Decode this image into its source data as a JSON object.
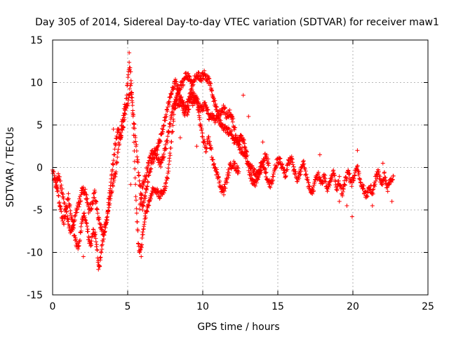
{
  "chart_data": {
    "type": "scatter",
    "title": "Day 305 of 2014, Sidereal Day-to-day VTEC variation (SDTVAR) for receiver maw1",
    "xlabel": "GPS time / hours",
    "ylabel": "SDTVAR / TECUs",
    "xlim": [
      0,
      25
    ],
    "ylim": [
      -15,
      15
    ],
    "xticks": [
      0,
      5,
      10,
      15,
      20,
      25
    ],
    "yticks": [
      -15,
      -10,
      -5,
      0,
      5,
      10,
      15
    ],
    "xtick_labels": [
      "0",
      "5",
      "10",
      "15",
      "20",
      "25"
    ],
    "ytick_labels": [
      "-15",
      "-10",
      "-5",
      "0",
      "5",
      "10",
      "15"
    ],
    "grid": true,
    "marker": "+",
    "series": [
      {
        "name": "maw1",
        "color": "#ff0000",
        "tracks": [
          [
            [
              0.0,
              -0.5
            ],
            [
              0.15,
              -1.5
            ],
            [
              0.3,
              -2.5
            ],
            [
              0.45,
              -4.0
            ],
            [
              0.6,
              -5.5
            ],
            [
              0.75,
              -6.5
            ],
            [
              0.9,
              -5.0
            ],
            [
              1.05,
              -3.5
            ],
            [
              1.2,
              -5.0
            ],
            [
              1.35,
              -7.0
            ],
            [
              1.5,
              -8.5
            ],
            [
              1.65,
              -9.5
            ],
            [
              1.8,
              -8.5
            ],
            [
              1.95,
              -6.5
            ],
            [
              2.1,
              -5.5
            ],
            [
              2.25,
              -6.5
            ],
            [
              2.4,
              -8.5
            ],
            [
              2.55,
              -9.0
            ],
            [
              2.7,
              -7.5
            ],
            [
              2.85,
              -8.0
            ],
            [
              3.0,
              -10.5
            ],
            [
              3.1,
              -12.0
            ],
            [
              3.2,
              -10.5
            ],
            [
              3.35,
              -8.5
            ],
            [
              3.5,
              -7.0
            ],
            [
              3.65,
              -5.5
            ],
            [
              3.8,
              -3.0
            ],
            [
              3.9,
              -1.0
            ],
            [
              4.0,
              0.0
            ],
            [
              4.1,
              1.5
            ],
            [
              4.2,
              3.0
            ],
            [
              4.35,
              4.5
            ],
            [
              4.5,
              3.5
            ],
            [
              4.65,
              4.5
            ],
            [
              4.8,
              6.0
            ],
            [
              4.9,
              8.0
            ],
            [
              5.0,
              10.0
            ],
            [
              5.1,
              12.0
            ],
            [
              5.2,
              11.0
            ],
            [
              5.3,
              8.0
            ],
            [
              5.4,
              4.0
            ],
            [
              5.5,
              -1.5
            ],
            [
              5.6,
              -5.5
            ],
            [
              5.7,
              -8.5
            ],
            [
              5.8,
              -10.0
            ],
            [
              5.9,
              -9.5
            ],
            [
              6.0,
              -8.0
            ],
            [
              6.1,
              -6.5
            ],
            [
              6.2,
              -5.5
            ],
            [
              6.35,
              -4.5
            ],
            [
              6.5,
              -3.5
            ],
            [
              6.7,
              -2.5
            ],
            [
              6.9,
              -2.8
            ],
            [
              7.1,
              -3.3
            ],
            [
              7.3,
              -3.0
            ],
            [
              7.5,
              -2.5
            ],
            [
              7.7,
              -0.5
            ],
            [
              7.9,
              3.0
            ],
            [
              8.1,
              6.5
            ],
            [
              8.3,
              8.5
            ],
            [
              8.5,
              9.5
            ],
            [
              8.7,
              10.0
            ],
            [
              8.9,
              11.0
            ],
            [
              9.1,
              10.5
            ],
            [
              9.3,
              9.8
            ],
            [
              9.5,
              10.5
            ],
            [
              9.7,
              10.8
            ],
            [
              9.9,
              10.5
            ],
            [
              10.1,
              11.0
            ],
            [
              10.3,
              10.5
            ],
            [
              10.5,
              10.0
            ],
            [
              10.7,
              8.0
            ],
            [
              10.9,
              7.0
            ],
            [
              11.1,
              5.5
            ],
            [
              11.3,
              5.0
            ],
            [
              11.5,
              4.5
            ],
            [
              11.7,
              4.2
            ],
            [
              11.9,
              4.0
            ],
            [
              12.1,
              3.2
            ],
            [
              12.3,
              3.0
            ],
            [
              12.5,
              3.5
            ],
            [
              12.7,
              3.0
            ],
            [
              12.9,
              2.0
            ],
            [
              13.1,
              -0.5
            ],
            [
              13.3,
              -1.5
            ],
            [
              13.5,
              -2.0
            ],
            [
              13.7,
              -1.0
            ],
            [
              13.9,
              0.5
            ],
            [
              14.1,
              0.0
            ],
            [
              14.3,
              -1.5
            ],
            [
              14.5,
              -2.0
            ],
            [
              14.7,
              -1.0
            ],
            [
              14.9,
              0.5
            ],
            [
              15.1,
              1.0
            ],
            [
              15.3,
              0.0
            ],
            [
              15.5,
              -1.0
            ],
            [
              15.7,
              0.5
            ],
            [
              15.9,
              1.0
            ],
            [
              16.1,
              -0.5
            ],
            [
              16.3,
              -1.5
            ],
            [
              16.5,
              -0.5
            ],
            [
              16.7,
              0.5
            ],
            [
              16.9,
              -1.0
            ],
            [
              17.1,
              -2.5
            ],
            [
              17.3,
              -3.0
            ],
            [
              17.5,
              -1.5
            ],
            [
              17.7,
              -1.0
            ],
            [
              17.9,
              -2.0
            ],
            [
              18.1,
              -1.0
            ],
            [
              18.3,
              -2.5
            ],
            [
              18.5,
              -1.5
            ],
            [
              18.7,
              -0.5
            ],
            [
              18.9,
              -2.5
            ],
            [
              19.1,
              -1.5
            ],
            [
              19.3,
              -3.0
            ],
            [
              19.5,
              -1.5
            ],
            [
              19.7,
              -0.5
            ],
            [
              19.9,
              -2.0
            ],
            [
              20.1,
              -1.0
            ],
            [
              20.3,
              0.0
            ],
            [
              20.5,
              -1.5
            ],
            [
              20.7,
              -2.5
            ],
            [
              20.9,
              -3.5
            ],
            [
              21.1,
              -2.0
            ],
            [
              21.3,
              -3.0
            ],
            [
              21.5,
              -1.5
            ],
            [
              21.7,
              -0.5
            ],
            [
              21.9,
              -2.0
            ],
            [
              22.1,
              -1.0
            ],
            [
              22.3,
              -2.5
            ],
            [
              22.5,
              -1.5
            ],
            [
              22.7,
              -1.0
            ]
          ],
          [
            [
              0.2,
              -2.0
            ],
            [
              0.4,
              -1.0
            ],
            [
              0.6,
              -2.5
            ],
            [
              0.8,
              -4.5
            ],
            [
              1.0,
              -6.0
            ],
            [
              1.2,
              -7.5
            ],
            [
              1.4,
              -6.5
            ],
            [
              1.6,
              -5.0
            ],
            [
              1.8,
              -4.0
            ],
            [
              2.0,
              -2.5
            ],
            [
              2.2,
              -3.0
            ],
            [
              2.4,
              -5.0
            ],
            [
              2.6,
              -4.5
            ],
            [
              2.8,
              -3.0
            ],
            [
              3.0,
              -5.5
            ],
            [
              3.2,
              -7.0
            ],
            [
              3.4,
              -8.0
            ],
            [
              3.6,
              -6.0
            ],
            [
              3.8,
              -4.0
            ],
            [
              4.0,
              -2.0
            ],
            [
              4.2,
              -0.5
            ],
            [
              4.4,
              2.5
            ],
            [
              4.6,
              5.0
            ],
            [
              4.8,
              7.0
            ],
            [
              5.0,
              7.5
            ],
            [
              5.2,
              9.5
            ],
            [
              5.4,
              5.5
            ],
            [
              5.6,
              2.0
            ],
            [
              5.8,
              -2.0
            ],
            [
              6.0,
              -5.0
            ],
            [
              6.2,
              -3.0
            ],
            [
              6.4,
              -1.0
            ],
            [
              6.6,
              0.5
            ],
            [
              6.8,
              1.5
            ],
            [
              7.0,
              2.5
            ],
            [
              7.2,
              3.5
            ],
            [
              7.4,
              5.0
            ],
            [
              7.6,
              6.5
            ],
            [
              7.8,
              8.0
            ],
            [
              8.0,
              9.5
            ],
            [
              8.2,
              10.0
            ],
            [
              8.4,
              9.0
            ],
            [
              8.6,
              7.5
            ],
            [
              8.8,
              6.5
            ],
            [
              9.0,
              7.5
            ],
            [
              9.2,
              9.0
            ],
            [
              9.4,
              8.5
            ],
            [
              9.6,
              8.0
            ],
            [
              9.8,
              5.5
            ],
            [
              10.0,
              3.5
            ],
            [
              10.2,
              2.0
            ],
            [
              10.4,
              3.5
            ],
            [
              10.6,
              1.5
            ],
            [
              10.8,
              0.0
            ],
            [
              11.0,
              -1.0
            ],
            [
              11.2,
              -2.5
            ],
            [
              11.4,
              -2.8
            ],
            [
              11.6,
              -1.5
            ],
            [
              11.8,
              0.0
            ],
            [
              12.0,
              0.5
            ],
            [
              12.2,
              0.0
            ],
            [
              12.4,
              -0.5
            ]
          ],
          [
            [
              5.8,
              -4.5
            ],
            [
              6.0,
              -2.0
            ],
            [
              6.2,
              -1.0
            ],
            [
              6.4,
              0.5
            ],
            [
              6.6,
              1.5
            ],
            [
              6.8,
              2.0
            ],
            [
              7.0,
              1.0
            ],
            [
              7.2,
              0.5
            ],
            [
              7.4,
              1.5
            ],
            [
              7.6,
              3.0
            ],
            [
              7.8,
              5.0
            ],
            [
              8.0,
              7.0
            ],
            [
              8.2,
              8.0
            ],
            [
              8.4,
              7.5
            ],
            [
              8.6,
              8.0
            ],
            [
              8.8,
              7.0
            ],
            [
              9.0,
              6.5
            ],
            [
              9.2,
              8.0
            ],
            [
              9.4,
              7.5
            ],
            [
              9.6,
              8.0
            ],
            [
              9.8,
              7.0
            ],
            [
              10.0,
              7.0
            ],
            [
              10.2,
              7.5
            ],
            [
              10.4,
              6.0
            ],
            [
              10.6,
              6.0
            ],
            [
              10.8,
              5.5
            ],
            [
              11.0,
              6.0
            ],
            [
              11.2,
              6.5
            ],
            [
              11.4,
              7.0
            ],
            [
              11.6,
              6.0
            ],
            [
              11.8,
              6.5
            ],
            [
              12.0,
              5.5
            ],
            [
              12.2,
              4.0
            ],
            [
              12.4,
              2.5
            ],
            [
              12.6,
              2.0
            ],
            [
              12.8,
              1.5
            ],
            [
              13.0,
              0.5
            ],
            [
              13.2,
              0.0
            ],
            [
              13.4,
              -0.5
            ],
            [
              13.6,
              -1.0
            ],
            [
              13.8,
              -0.5
            ],
            [
              14.0,
              0.5
            ],
            [
              14.2,
              1.5
            ],
            [
              14.4,
              0.5
            ]
          ]
        ],
        "spikes": [
          {
            "x": 2.05,
            "y": -10.5
          },
          {
            "x": 3.05,
            "y": -12.0
          },
          {
            "x": 4.05,
            "y": 4.5
          },
          {
            "x": 5.1,
            "y": 13.5
          },
          {
            "x": 5.2,
            "y": -2.0
          },
          {
            "x": 5.9,
            "y": -10.5
          },
          {
            "x": 8.5,
            "y": 3.5
          },
          {
            "x": 9.6,
            "y": 2.5
          },
          {
            "x": 12.7,
            "y": 8.5
          },
          {
            "x": 13.05,
            "y": 6.0
          },
          {
            "x": 14.0,
            "y": 3.0
          },
          {
            "x": 17.8,
            "y": 1.5
          },
          {
            "x": 19.1,
            "y": -4.0
          },
          {
            "x": 19.6,
            "y": -4.5
          },
          {
            "x": 19.95,
            "y": -5.8
          },
          {
            "x": 20.3,
            "y": 2.0
          },
          {
            "x": 21.3,
            "y": -4.5
          },
          {
            "x": 22.0,
            "y": 0.5
          },
          {
            "x": 22.6,
            "y": -4.0
          }
        ]
      }
    ]
  }
}
